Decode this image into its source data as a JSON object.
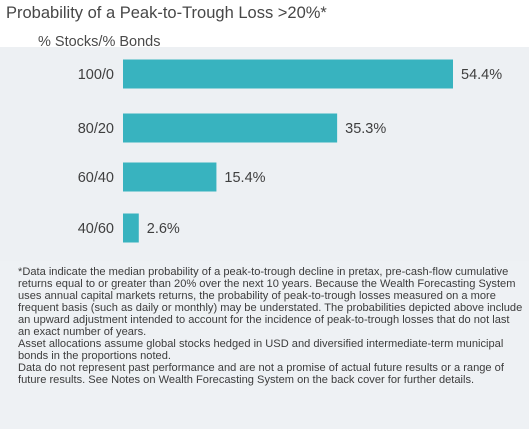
{
  "title": "Probability of a Peak-to-Trough Loss >20%*",
  "subtitle": "% Stocks/% Bonds",
  "colors": {
    "bar": "#38b3bf",
    "panel_bg": "#edf0f3",
    "text": "#3c3c3c"
  },
  "chart_data": {
    "type": "bar",
    "orientation": "horizontal",
    "title": "Probability of a Peak-to-Trough Loss >20%*",
    "xlabel": "",
    "ylabel": "% Stocks/% Bonds",
    "categories": [
      "100/0",
      "80/20",
      "60/40",
      "40/60"
    ],
    "values": [
      54.4,
      35.3,
      15.4,
      2.6
    ],
    "value_labels": [
      "54.4%",
      "35.3%",
      "15.4%",
      "2.6%"
    ],
    "xlim": [
      0,
      54.4
    ],
    "grid": false,
    "legend": "none"
  },
  "footnote": "*Data indicate the median probability of a peak-to-trough decline in pretax, pre-cash-flow cumulative returns equal to or greater than 20% over the next 10 years. Because the Wealth Forecasting System uses annual capital markets returns, the probability of peak-to-trough losses measured on a more frequent basis (such as daily or monthly) may be understated. The probabilities depicted above include an upward adjustment intended to account for the incidence of peak-to-trough losses that do not last an exact number of years.\nAsset allocations assume global stocks hedged in USD and diversified intermediate-term municipal bonds in the proportions noted.\nData do not represent past performance and are not a promise of actual future results or a range of future results. See Notes on Wealth Forecasting System on the back cover for further details."
}
